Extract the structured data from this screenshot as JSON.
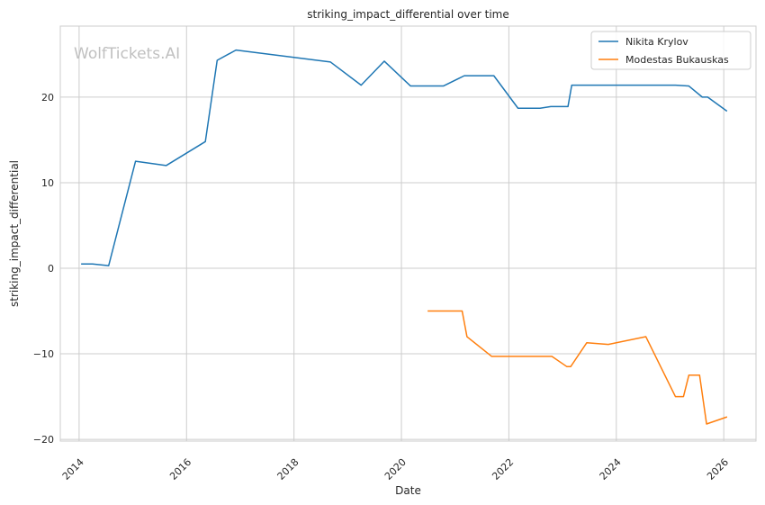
{
  "chart_data": {
    "type": "line",
    "title": "striking_impact_differential over time",
    "xlabel": "Date",
    "ylabel": "striking_impact_differential",
    "watermark": "WolfTickets.AI",
    "xlim": [
      2013.65,
      2026.6
    ],
    "ylim": [
      -20.2,
      28.3
    ],
    "xticks": [
      2014,
      2016,
      2018,
      2020,
      2022,
      2024,
      2026
    ],
    "yticks": [
      -20,
      -10,
      0,
      10,
      20
    ],
    "grid": true,
    "legend_position": "top-right",
    "series": [
      {
        "name": "Nikita Krylov",
        "color": "#1f77b4",
        "points": [
          [
            2014.05,
            0.5
          ],
          [
            2014.25,
            0.5
          ],
          [
            2014.55,
            0.3
          ],
          [
            2015.05,
            12.5
          ],
          [
            2015.62,
            12.0
          ],
          [
            2016.35,
            14.8
          ],
          [
            2016.57,
            24.3
          ],
          [
            2016.92,
            25.5
          ],
          [
            2018.68,
            24.1
          ],
          [
            2019.25,
            21.4
          ],
          [
            2019.68,
            24.2
          ],
          [
            2020.17,
            21.3
          ],
          [
            2020.78,
            21.3
          ],
          [
            2021.17,
            22.5
          ],
          [
            2021.72,
            22.5
          ],
          [
            2022.17,
            18.7
          ],
          [
            2022.58,
            18.7
          ],
          [
            2022.78,
            18.9
          ],
          [
            2023.1,
            18.9
          ],
          [
            2023.17,
            21.4
          ],
          [
            2025.1,
            21.4
          ],
          [
            2025.35,
            21.3
          ],
          [
            2025.6,
            20.0
          ],
          [
            2025.7,
            20.0
          ],
          [
            2026.05,
            18.4
          ]
        ]
      },
      {
        "name": "Modestas Bukauskas",
        "color": "#ff7f0e",
        "points": [
          [
            2020.5,
            -5.0
          ],
          [
            2021.13,
            -5.0
          ],
          [
            2021.22,
            -8.0
          ],
          [
            2021.68,
            -10.3
          ],
          [
            2022.8,
            -10.3
          ],
          [
            2023.08,
            -11.5
          ],
          [
            2023.15,
            -11.5
          ],
          [
            2023.45,
            -8.7
          ],
          [
            2023.85,
            -8.9
          ],
          [
            2024.55,
            -8.0
          ],
          [
            2025.1,
            -15.0
          ],
          [
            2025.25,
            -15.0
          ],
          [
            2025.35,
            -12.5
          ],
          [
            2025.55,
            -12.5
          ],
          [
            2025.68,
            -18.2
          ],
          [
            2026.05,
            -17.4
          ]
        ]
      }
    ]
  }
}
